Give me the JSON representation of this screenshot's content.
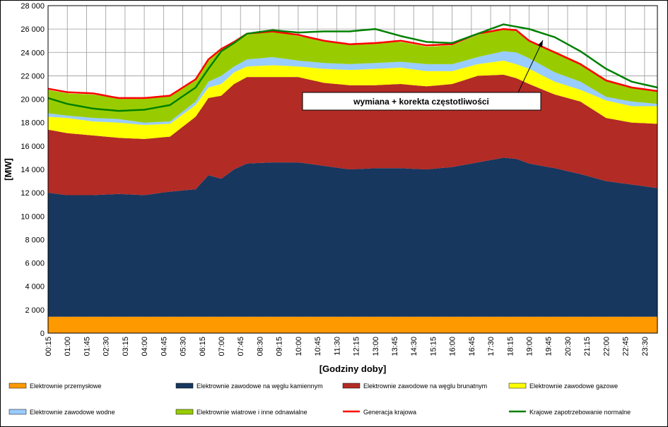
{
  "chart_data": {
    "type": "area",
    "ylabel": "[MW]",
    "xlabel": "[Godziny doby]",
    "ylim": [
      0,
      28000
    ],
    "yticks": [
      0,
      2000,
      4000,
      6000,
      8000,
      10000,
      12000,
      14000,
      16000,
      18000,
      20000,
      22000,
      24000,
      26000,
      28000
    ],
    "ytick_labels": [
      "0",
      "2 000",
      "4 000",
      "6 000",
      "8 000",
      "10 000",
      "12 000",
      "14 000",
      "16 000",
      "18 000",
      "20 000",
      "22 000",
      "24 000",
      "26 000",
      "28 000"
    ],
    "xtick_labels": [
      "00:15",
      "01:00",
      "01:45",
      "02:30",
      "03:15",
      "04:00",
      "04:45",
      "05:30",
      "06:15",
      "07:00",
      "07:45",
      "08:30",
      "09:15",
      "10:00",
      "10:45",
      "11:30",
      "12:15",
      "13:00",
      "13:45",
      "14:30",
      "15:15",
      "16:00",
      "16:45",
      "17:30",
      "18:15",
      "19:00",
      "19:45",
      "20:30",
      "21:15",
      "22:00",
      "22:45",
      "23:30"
    ],
    "grid": true,
    "legend_position": "bottom",
    "stack_order": [
      "Elektrownie przemysłowe",
      "Elektrownie zawodowe na węglu kamiennym",
      "Elektrownie zawodowe na węglu brunatnym",
      "Elektrownie zawodowe gazowe",
      "Elektrownie zawodowe wodne",
      "Elektrownie wiatrowe i inne odnawialne"
    ],
    "colors": {
      "przemyslowe": "#FF9900",
      "kamienny": "#17375E",
      "brunatny": "#B22B25",
      "gazowe": "#FFFF00",
      "wodne": "#99CCFF",
      "wiatrowe": "#99CC00",
      "generacja": "#FF0000",
      "zapotrzebowanie": "#008000"
    },
    "areas": [
      {
        "name": "Elektrownie przemysłowe",
        "key": "przemyslowe",
        "level_key": "przemyslowe"
      },
      {
        "name": "Elektrownie zawodowe na węglu kamiennym",
        "key": "kamienny",
        "level_key": "kamienny_top"
      },
      {
        "name": "Elektrownie zawodowe na węglu brunatnym",
        "key": "brunatny",
        "level_key": "brunatny_top"
      },
      {
        "name": "Elektrownie zawodowe gazowe",
        "key": "gazowe",
        "level_key": "gazowe_top"
      },
      {
        "name": "Elektrownie zawodowe wodne",
        "key": "wodne",
        "level_key": "wodne_top"
      },
      {
        "name": "Elektrownie wiatrowe i inne odnawialne",
        "key": "wiatrowe",
        "level_key": "wiatrowe_top"
      }
    ],
    "lines": [
      {
        "name": "Generacja krajowa",
        "key": "generacja",
        "level_key": "generacja"
      },
      {
        "name": "Krajowe zapotrzebowanie normalne",
        "key": "zapotrzebowanie",
        "level_key": "zapotrzebowanie"
      }
    ],
    "keypoint_hours": [
      0.25,
      1,
      2,
      3,
      4,
      5,
      6,
      6.5,
      7,
      7.5,
      8,
      9,
      10,
      11,
      12,
      13,
      14,
      15,
      16,
      17,
      18,
      18.5,
      19,
      20,
      21,
      22,
      23,
      24
    ],
    "levels_cumulative": {
      "przemyslowe": [
        1400,
        1400,
        1400,
        1400,
        1400,
        1400,
        1400,
        1400,
        1400,
        1400,
        1400,
        1400,
        1400,
        1400,
        1400,
        1400,
        1400,
        1400,
        1400,
        1400,
        1400,
        1400,
        1400,
        1400,
        1400,
        1400,
        1400,
        1400
      ],
      "kamienny_top": [
        12000,
        11800,
        11800,
        11900,
        11800,
        12100,
        12300,
        13500,
        13200,
        14000,
        14500,
        14600,
        14600,
        14300,
        14000,
        14100,
        14100,
        14000,
        14200,
        14600,
        15000,
        14900,
        14500,
        14100,
        13600,
        13000,
        12700,
        12400
      ],
      "brunatny_top": [
        17400,
        17100,
        16900,
        16700,
        16600,
        16800,
        18500,
        20100,
        20300,
        21300,
        21900,
        21900,
        21900,
        21400,
        21200,
        21200,
        21300,
        21100,
        21300,
        22000,
        22100,
        21800,
        21300,
        20400,
        19800,
        18400,
        18000,
        17900
      ],
      "gazowe_top": [
        18500,
        18400,
        18100,
        18000,
        17800,
        17900,
        19500,
        21000,
        21300,
        22300,
        22800,
        22900,
        22800,
        22600,
        22500,
        22600,
        22700,
        22400,
        22400,
        23000,
        23300,
        23000,
        22600,
        21500,
        20800,
        19900,
        19400,
        19400
      ],
      "wodne_top": [
        18800,
        18600,
        18400,
        18300,
        18000,
        18100,
        19800,
        21500,
        22000,
        22800,
        23400,
        23600,
        23300,
        23100,
        23000,
        23100,
        23200,
        23000,
        23000,
        23600,
        24100,
        24000,
        23500,
        22300,
        21500,
        20200,
        19800,
        19600
      ],
      "wiatrowe_top": [
        20800,
        20500,
        20400,
        20100,
        20100,
        20300,
        21600,
        23300,
        24300,
        24900,
        25500,
        25800,
        25400,
        25000,
        24700,
        24800,
        24900,
        24500,
        24600,
        25500,
        26000,
        25800,
        25000,
        24100,
        23100,
        21700,
        21000,
        20700
      ],
      "generacja": [
        20900,
        20600,
        20500,
        20100,
        20100,
        20300,
        21700,
        23400,
        24300,
        24900,
        25600,
        25800,
        25500,
        25000,
        24700,
        24800,
        25000,
        24600,
        24700,
        25600,
        26000,
        25900,
        25000,
        24000,
        23000,
        21600,
        21000,
        20700
      ],
      "zapotrzebowanie": [
        20100,
        19600,
        19200,
        19000,
        19100,
        19500,
        21000,
        22600,
        24100,
        24800,
        25600,
        25900,
        25700,
        25800,
        25800,
        26000,
        25400,
        24900,
        24800,
        25600,
        26400,
        26200,
        26000,
        25300,
        24100,
        22600,
        21500,
        21000
      ]
    },
    "annotation": "wymiana + korekta częstotliwości"
  }
}
